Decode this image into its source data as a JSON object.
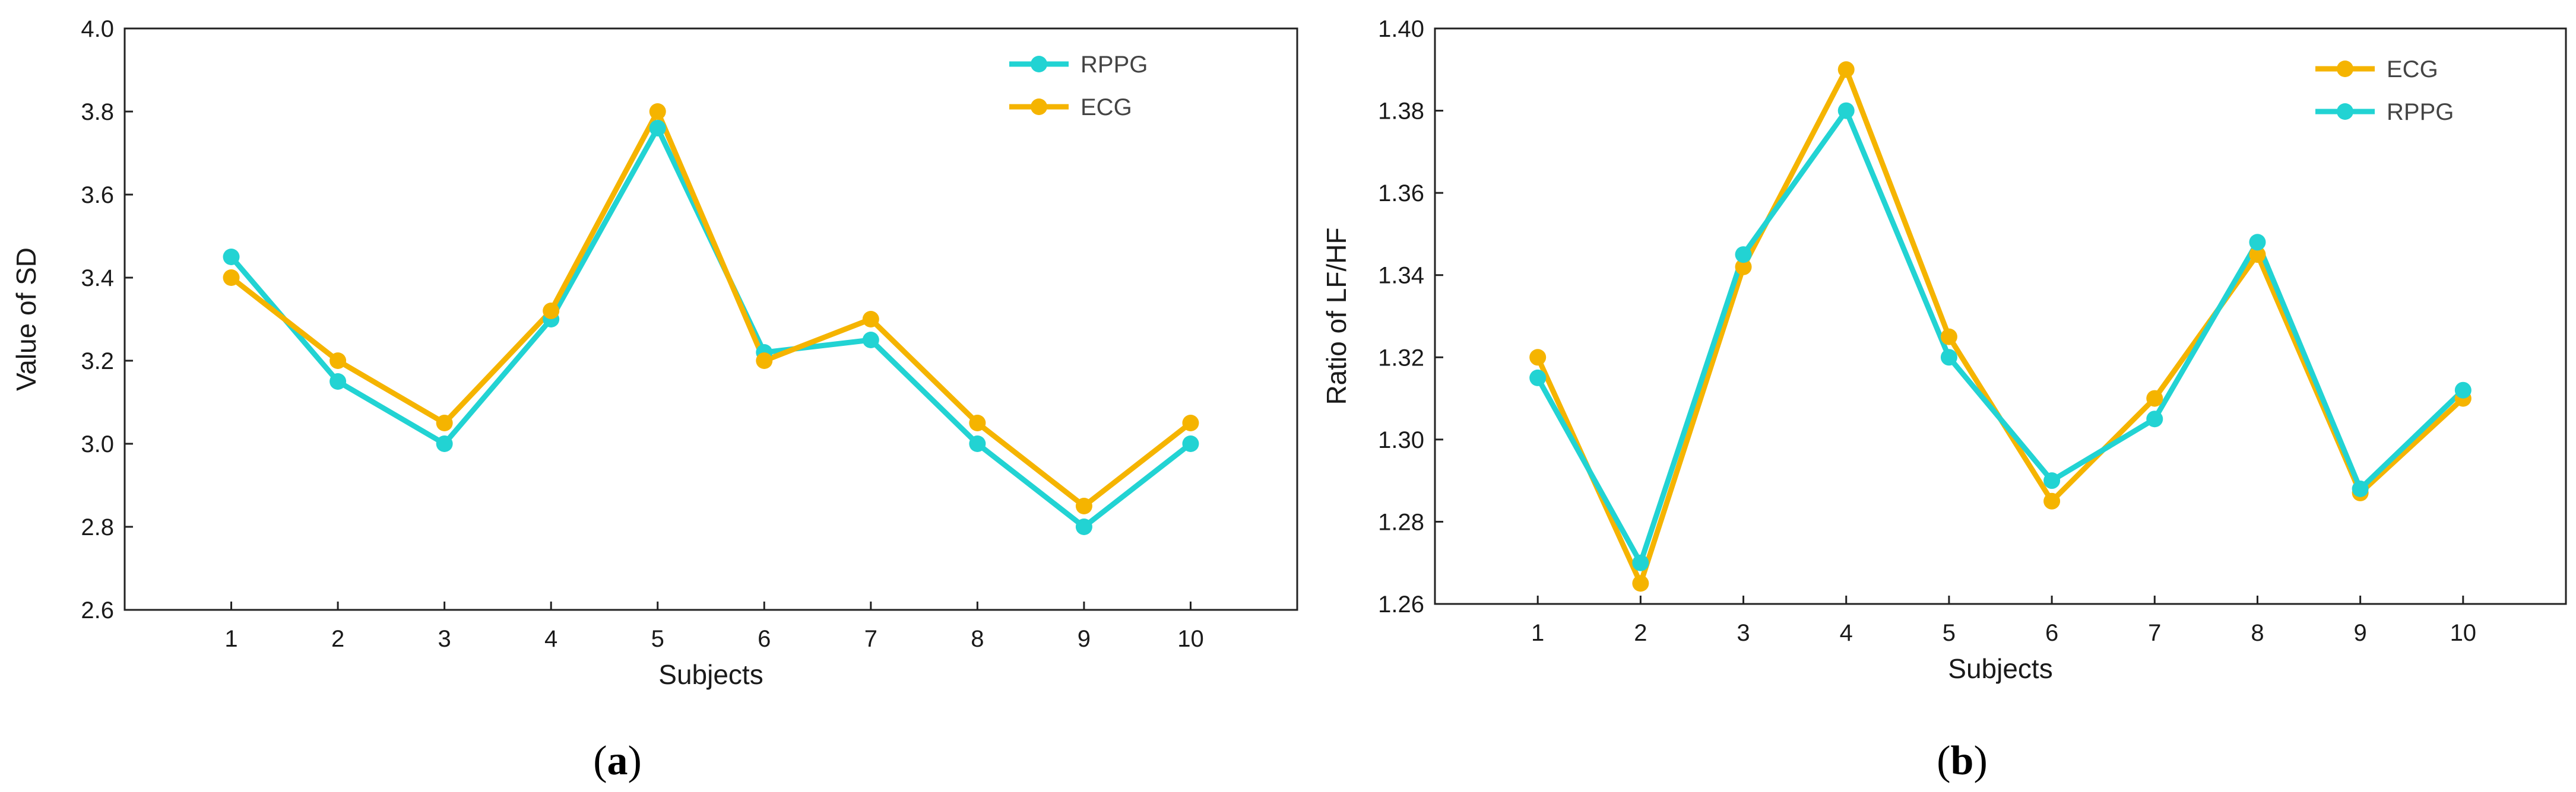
{
  "chart_data": [
    {
      "type": "line",
      "caption_open": "(",
      "caption_letter": "a",
      "caption_close": ")",
      "xlabel": "Subjects",
      "ylabel": "Value of SD",
      "categories": [
        "1",
        "2",
        "3",
        "4",
        "5",
        "6",
        "7",
        "8",
        "9",
        "10"
      ],
      "ylim": [
        2.6,
        4.0
      ],
      "yticks": [
        "2.6",
        "2.8",
        "3.0",
        "3.2",
        "3.4",
        "3.6",
        "3.8",
        "4.0"
      ],
      "legend_position": "top-right",
      "series": [
        {
          "name": "RPPG",
          "color": "#22D3D3",
          "values": [
            3.45,
            3.15,
            3.0,
            3.3,
            3.76,
            3.22,
            3.25,
            3.0,
            2.8,
            3.0
          ]
        },
        {
          "name": "ECG",
          "color": "#F5B400",
          "values": [
            3.4,
            3.2,
            3.05,
            3.32,
            3.8,
            3.2,
            3.3,
            3.05,
            2.85,
            3.05
          ]
        }
      ]
    },
    {
      "type": "line",
      "caption_open": "(",
      "caption_letter": "b",
      "caption_close": ")",
      "xlabel": "Subjects",
      "ylabel": "Ratio of LF/HF",
      "categories": [
        "1",
        "2",
        "3",
        "4",
        "5",
        "6",
        "7",
        "8",
        "9",
        "10"
      ],
      "ylim": [
        1.26,
        1.4
      ],
      "yticks": [
        "1.26",
        "1.28",
        "1.30",
        "1.32",
        "1.34",
        "1.36",
        "1.38",
        "1.40"
      ],
      "legend_position": "top-right",
      "series": [
        {
          "name": "ECG",
          "color": "#F5B400",
          "values": [
            1.32,
            1.265,
            1.342,
            1.39,
            1.325,
            1.285,
            1.31,
            1.345,
            1.287,
            1.31
          ]
        },
        {
          "name": "RPPG",
          "color": "#22D3D3",
          "values": [
            1.315,
            1.27,
            1.345,
            1.38,
            1.32,
            1.29,
            1.305,
            1.348,
            1.288,
            1.312
          ]
        }
      ]
    }
  ]
}
